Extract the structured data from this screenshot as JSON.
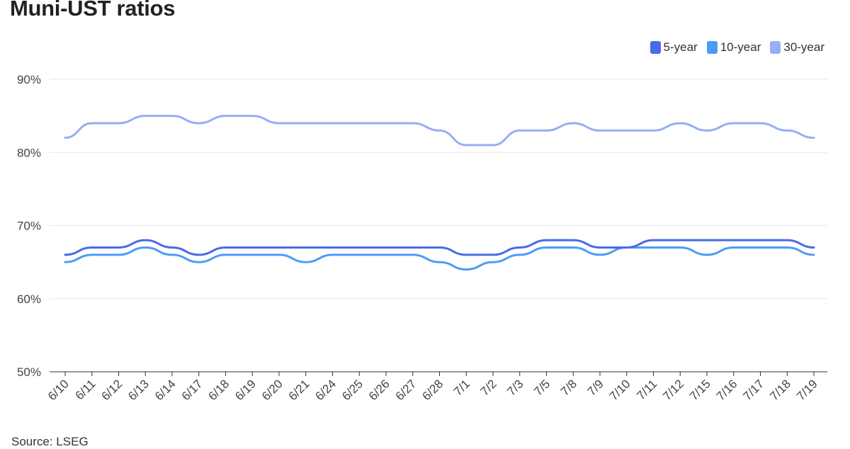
{
  "chart_data": {
    "type": "line",
    "title": "Muni-UST ratios",
    "source": "Source: LSEG",
    "xlabel": "",
    "ylabel": "",
    "ylim": [
      50,
      90
    ],
    "yticks": [
      "90%",
      "80%",
      "70%",
      "60%",
      "50%"
    ],
    "ytick_values": [
      90,
      80,
      70,
      60,
      50
    ],
    "grid": true,
    "legend_position": "top-right",
    "categories": [
      "6/10",
      "6/11",
      "6/12",
      "6/13",
      "6/14",
      "6/17",
      "6/18",
      "6/19",
      "6/20",
      "6/21",
      "6/24",
      "6/25",
      "6/26",
      "6/27",
      "6/28",
      "7/1",
      "7/2",
      "7/3",
      "7/5",
      "7/8",
      "7/9",
      "7/10",
      "7/11",
      "7/12",
      "7/15",
      "7/16",
      "7/17",
      "7/18",
      "7/19"
    ],
    "series": [
      {
        "name": "5-year",
        "color": "#4a6ae8",
        "values": [
          66,
          67,
          67,
          68,
          67,
          66,
          67,
          67,
          67,
          67,
          67,
          67,
          67,
          67,
          67,
          66,
          66,
          67,
          68,
          68,
          67,
          67,
          68,
          68,
          68,
          68,
          68,
          68,
          67
        ]
      },
      {
        "name": "10-year",
        "color": "#4b9cf5",
        "values": [
          65,
          66,
          66,
          67,
          66,
          65,
          66,
          66,
          66,
          65,
          66,
          66,
          66,
          66,
          65,
          64,
          65,
          66,
          67,
          67,
          66,
          67,
          67,
          67,
          66,
          67,
          67,
          67,
          66
        ]
      },
      {
        "name": "30-year",
        "color": "#96aef5",
        "values": [
          82,
          84,
          84,
          85,
          85,
          84,
          85,
          85,
          84,
          84,
          84,
          84,
          84,
          84,
          83,
          81,
          81,
          83,
          83,
          84,
          83,
          83,
          83,
          84,
          83,
          84,
          84,
          83,
          82
        ]
      }
    ]
  }
}
